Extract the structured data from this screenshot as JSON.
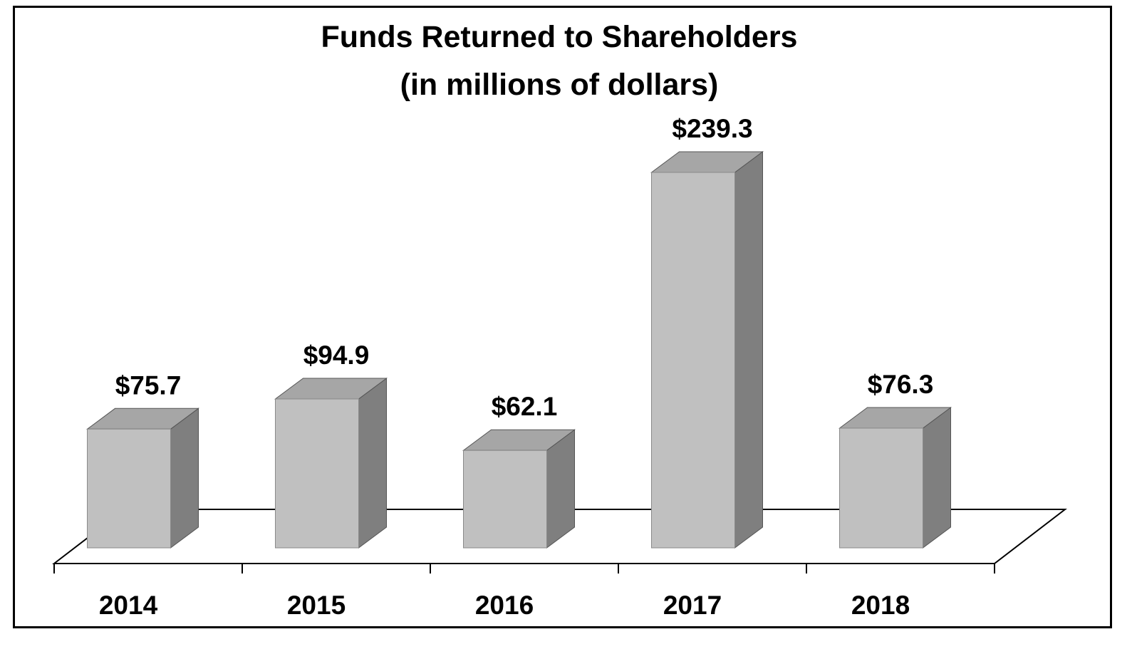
{
  "chart_data": {
    "type": "bar",
    "title": "Funds Returned to Shareholders",
    "subtitle": "(in millions of dollars)",
    "categories": [
      "2014",
      "2015",
      "2016",
      "2017",
      "2018"
    ],
    "values": [
      75.7,
      94.9,
      62.1,
      239.3,
      76.3
    ],
    "value_labels": [
      "$75.7",
      "$94.9",
      "$62.1",
      "$239.3",
      "$76.3"
    ],
    "xlabel": "",
    "ylabel": "",
    "ylim": [
      0,
      239.3
    ],
    "grid": false,
    "legend": "none",
    "style": "3d-column",
    "colors": {
      "front": "#c0c0c0",
      "top": "#a6a6a6",
      "side": "#7f7f7f",
      "outline": "#000000"
    }
  }
}
